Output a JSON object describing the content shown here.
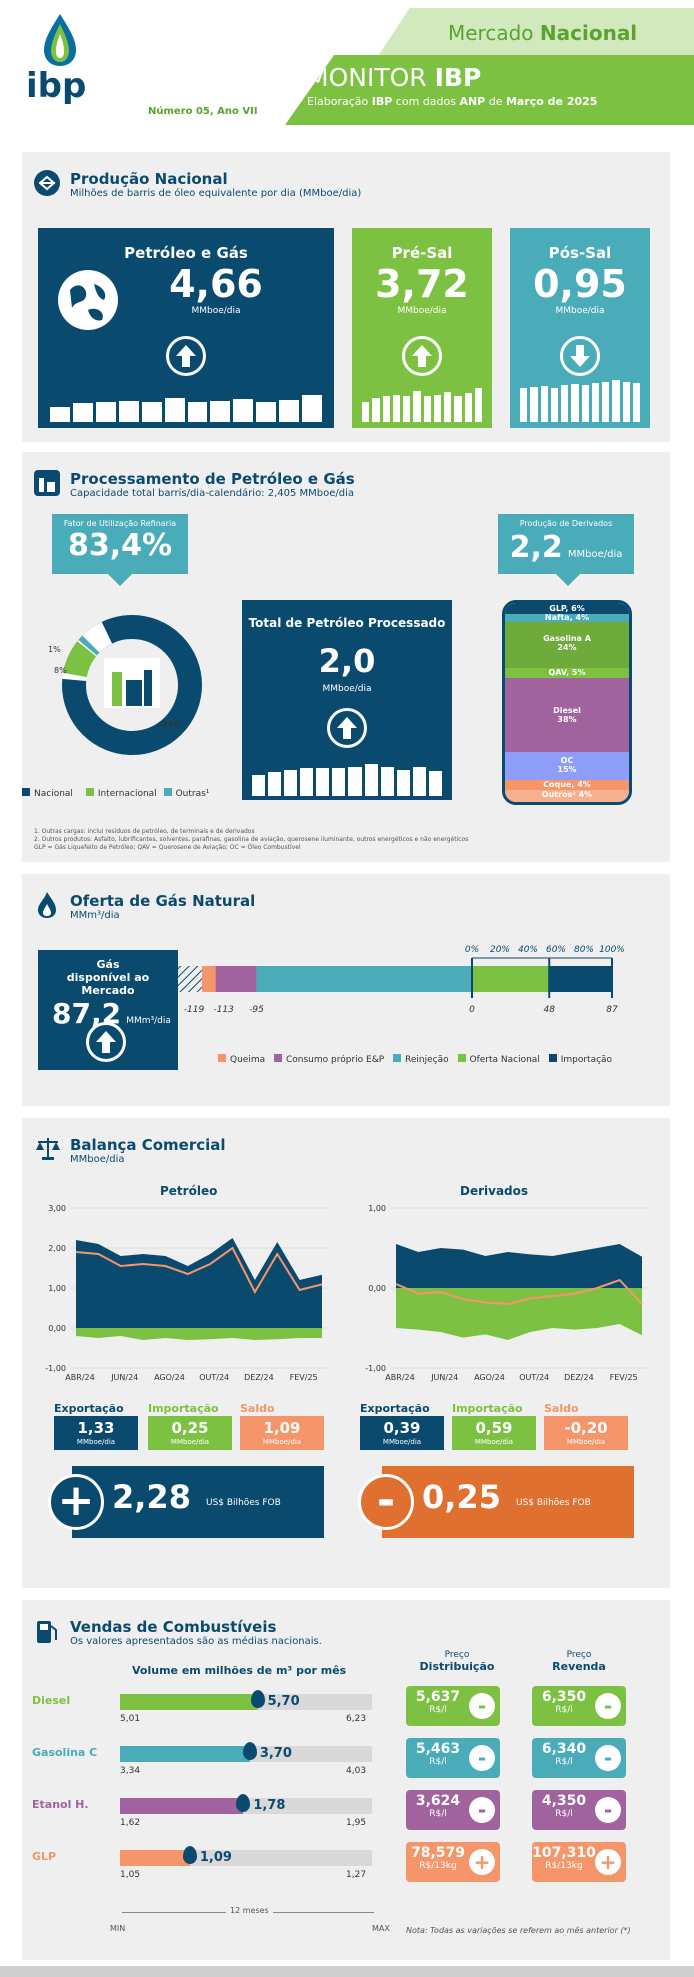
{
  "header": {
    "top_tag_a": "Mercado ",
    "top_tag_b": "Nacional",
    "title_a": "MONITOR ",
    "title_b": "IBP",
    "edition": "Número 05, Ano VII",
    "subtitle_a": "Elaboração ",
    "subtitle_b": "IBP",
    "subtitle_c": " com dados ",
    "subtitle_d": "ANP",
    "subtitle_e": " de ",
    "subtitle_f": "Março de 2025",
    "logo": "ibp"
  },
  "producao": {
    "title": "Produção Nacional",
    "subtitle": "Milhões de barris de óleo equivalente por dia (MMboe/dia)",
    "tiles": [
      {
        "title": "Petróleo e Gás",
        "value": "4,66",
        "unit": "MMboe/dia",
        "trend": "up",
        "bars": [
          0.45,
          0.55,
          0.6,
          0.62,
          0.58,
          0.7,
          0.6,
          0.62,
          0.68,
          0.6,
          0.66,
          0.78
        ]
      },
      {
        "title": "Pré-Sal",
        "value": "3,72",
        "unit": "MMboe/dia",
        "trend": "up",
        "bars": [
          0.45,
          0.55,
          0.6,
          0.62,
          0.58,
          0.7,
          0.6,
          0.62,
          0.68,
          0.6,
          0.66,
          0.78
        ]
      },
      {
        "title": "Pós-Sal",
        "value": "0,95",
        "unit": "MMboe/dia",
        "trend": "down",
        "bars": [
          0.78,
          0.8,
          0.82,
          0.78,
          0.84,
          0.86,
          0.84,
          0.88,
          0.9,
          0.96,
          0.92,
          0.88
        ]
      }
    ]
  },
  "processamento": {
    "title": "Processamento de Petróleo e Gás",
    "subtitle": "Capacidade total barris/dia-calendário: 2,405 MMboe/dia",
    "fator_label": "Fator de Utilização Refinaria",
    "fator_value": "83,4%",
    "donut": {
      "nacional": 74,
      "internacional": 8,
      "outras": 1,
      "label_nac": "74%",
      "label_int": "8%",
      "label_out": "1%"
    },
    "legend": [
      "Nacional",
      "Internacional",
      "Outras¹"
    ],
    "total_title": "Total de Petróleo Processado",
    "total_value": "2,0",
    "total_unit": "MMboe/dia",
    "total_bars": [
      0.52,
      0.6,
      0.66,
      0.7,
      0.7,
      0.7,
      0.72,
      0.8,
      0.72,
      0.66,
      0.72,
      0.62
    ],
    "derivados_label": "Produção de Derivados",
    "derivados_value": "2,2",
    "derivados_unit": "MMboe/dia",
    "barrel": [
      {
        "name": "GLP, 6%"
      },
      {
        "name": "Nafta, 4%"
      },
      {
        "name": "Gasolina A",
        "pct": "24%"
      },
      {
        "name": "QAV, 5%"
      },
      {
        "name": "Diesel",
        "pct": "38%"
      },
      {
        "name": "OC",
        "pct": "15%"
      },
      {
        "name": "Coque, 4%"
      },
      {
        "name": "Outros²  4%"
      }
    ],
    "notes": [
      "1. Outras cargas: inclui resíduos de petróleo, de terminais e de derivados",
      "2. Outros produtos: Asfalto, lubrificantes, solventes, parafinas, gasolina de aviação, querosene iluminante, outros energéticos e não energéticos",
      "GLP = Gás Liquefeito de Petróleo; QAV = Querosene de Aviação; OC = Óleo Combustível"
    ]
  },
  "gas": {
    "title": "Oferta de Gás Natural",
    "subtitle": "MMm³/dia",
    "box_label": "Gás disponível ao Mercado",
    "box_value": "87,2",
    "box_unit": "MMm³/dia",
    "pct_ticks": [
      "0%",
      "20%",
      "40%",
      "60%",
      "80%",
      "100%"
    ],
    "ticks": [
      "-119",
      "-113",
      "-95",
      "0",
      "48",
      "87"
    ],
    "values": {
      "queima": -119,
      "consumo": -113,
      "reinjecao": -95,
      "nacional": 48,
      "importacao": 87
    },
    "legend": [
      "Queima",
      "Consumo próprio E&P",
      "Reinjeção",
      "Oferta Nacional",
      "Importação"
    ]
  },
  "balanca": {
    "title": "Balança Comercial",
    "subtitle": "MMboe/dia",
    "petroleo": {
      "title": "Petróleo",
      "yticks": [
        "3,00",
        "2,00",
        "1,00",
        "0,00",
        "-1,00"
      ],
      "xticks": [
        "ABR/24",
        "JUN/24",
        "AGO/24",
        "OUT/24",
        "DEZ/24",
        "FEV/25"
      ],
      "exp": [
        2.2,
        2.1,
        1.8,
        1.85,
        1.8,
        1.55,
        1.85,
        2.25,
        1.2,
        2.15,
        1.2,
        1.33
      ],
      "imp": [
        0.2,
        0.25,
        0.2,
        0.3,
        0.25,
        0.3,
        0.28,
        0.25,
        0.3,
        0.28,
        0.25,
        0.25
      ],
      "saldo": [
        1.9,
        1.85,
        1.55,
        1.6,
        1.55,
        1.35,
        1.6,
        2.0,
        0.9,
        1.85,
        0.95,
        1.09
      ],
      "exp_label": "Exportação",
      "imp_label": "Importação",
      "saldo_label": "Saldo",
      "exp_value": "1,33",
      "imp_value": "0,25",
      "saldo_value": "1,09",
      "unit": "MMboe/dia",
      "total": "2,28",
      "total_unit": "US$ Bilhões FOB",
      "sign": "+"
    },
    "derivados": {
      "title": "Derivados",
      "yticks": [
        "1,00",
        "0,00",
        "-1,00"
      ],
      "xticks": [
        "ABR/24",
        "JUN/24",
        "AGO/24",
        "OUT/24",
        "DEZ/24",
        "FEV/25"
      ],
      "exp": [
        0.55,
        0.45,
        0.5,
        0.48,
        0.4,
        0.45,
        0.42,
        0.4,
        0.45,
        0.5,
        0.55,
        0.39
      ],
      "imp": [
        0.5,
        0.52,
        0.55,
        0.62,
        0.58,
        0.65,
        0.55,
        0.5,
        0.52,
        0.5,
        0.45,
        0.59
      ],
      "saldo": [
        0.05,
        -0.07,
        -0.05,
        -0.14,
        -0.18,
        -0.2,
        -0.13,
        -0.1,
        -0.07,
        0.0,
        0.1,
        -0.2
      ],
      "exp_label": "Exportação",
      "imp_label": "Importação",
      "saldo_label": "Saldo",
      "exp_value": "0,39",
      "imp_value": "0,59",
      "saldo_value": "-0,20",
      "unit": "MMboe/dia",
      "total": "0,25",
      "total_unit": "US$ Bilhões FOB",
      "sign": "-"
    }
  },
  "vendas": {
    "title": "Vendas de Combustíveis",
    "subtitle": "Os valores apresentados são as médias nacionais.",
    "volume_title": "Volume em milhões de m³ por mês",
    "col_dist_a": "Preço",
    "col_dist_b": "Distribuição",
    "col_rev_a": "Preço",
    "col_rev_b": "Revenda",
    "min": "MIN",
    "max": "MAX",
    "months": "12 meses",
    "note": "Nota: Todas as variações se referem ao mês anterior (*)",
    "items": [
      {
        "name": "Diesel",
        "value": "5,70",
        "min": "5,01",
        "max": "6,23",
        "num": 5.7,
        "nmin": 5.01,
        "nmax": 6.23,
        "dist": "5,637",
        "dist_u": "R$/l",
        "dist_s": "-",
        "rev": "6,350",
        "rev_u": "R$/l",
        "rev_s": "-",
        "color": "#7dc142"
      },
      {
        "name": "Gasolina C",
        "value": "3,70",
        "min": "3,34",
        "max": "4,03",
        "num": 3.7,
        "nmin": 3.34,
        "nmax": 4.03,
        "dist": "5,463",
        "dist_u": "R$/l",
        "dist_s": "-",
        "rev": "6,340",
        "rev_u": "R$/l",
        "rev_s": "-",
        "color": "#4aacb8"
      },
      {
        "name": "Etanol H.",
        "value": "1,78",
        "min": "1,62",
        "max": "1,95",
        "num": 1.78,
        "nmin": 1.62,
        "nmax": 1.95,
        "dist": "3,624",
        "dist_u": "R$/l",
        "dist_s": "-",
        "rev": "4,350",
        "rev_u": "R$/l",
        "rev_s": "-",
        "color": "#a0639e"
      },
      {
        "name": "GLP",
        "value": "1,09",
        "min": "1,05",
        "max": "1,27",
        "num": 1.09,
        "nmin": 1.05,
        "nmax": 1.27,
        "dist": "78,579",
        "dist_u": "R$/13kg",
        "dist_s": "+",
        "rev": "107,310",
        "rev_u": "R$/13kg",
        "rev_s": "+",
        "color": "#f4956a"
      }
    ]
  }
}
